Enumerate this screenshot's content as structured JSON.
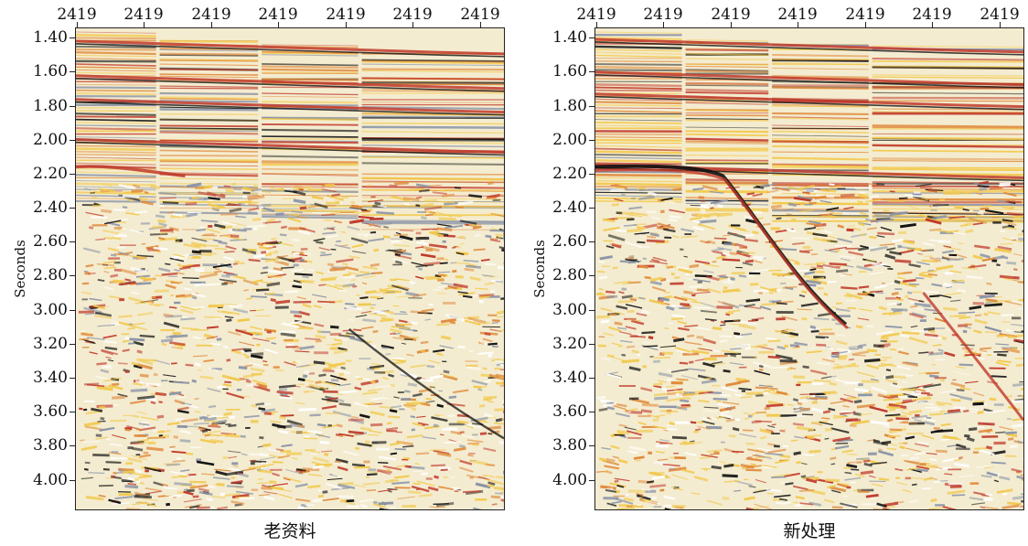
{
  "trace_axis": {
    "labels": [
      "2419",
      "2419",
      "2419",
      "2419",
      "2419",
      "2419",
      "2419"
    ]
  },
  "time_axis": {
    "label": "Seconds",
    "labels": [
      "1.40",
      "1.60",
      "1.80",
      "2.00",
      "2.20",
      "2.40",
      "2.60",
      "2.80",
      "3.00",
      "3.20",
      "3.40",
      "3.60",
      "3.80",
      "4.00"
    ],
    "range_seconds": [
      1.34,
      4.18
    ]
  },
  "colors": {
    "background": "#f4ecd0",
    "yellow": "#f2c94c",
    "orange": "#e08a3c",
    "red": "#c0392b",
    "black": "#111111",
    "blue_gray": "#8a94a8"
  },
  "panels": [
    {
      "caption": "老资料"
    },
    {
      "caption": "新处理"
    }
  ]
}
